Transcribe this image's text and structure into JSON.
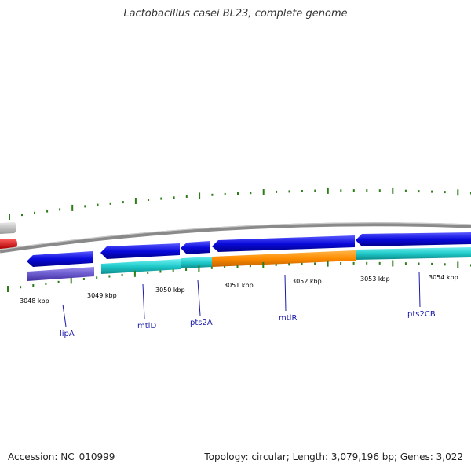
{
  "title": "Lactobacillus casei BL23, complete genome",
  "footer": {
    "accession": "Accession: NC_010999",
    "summary": "Topology: circular; Length: 3,079,196 bp; Genes: 3,022"
  },
  "scale_labels": [
    "3048 kbp",
    "3049 kbp",
    "3050 kbp",
    "3051 kbp",
    "3052 kbp",
    "3053 kbp",
    "3054 kbp"
  ],
  "gene_labels": [
    "lipA",
    "mtlD",
    "pts2A",
    "mtlR",
    "pts2CB"
  ],
  "colors": {
    "backbone": "#8a8a8a",
    "cds_strand": "#0a0adc",
    "unknown_function": "#6a5acd",
    "transport": "#1fc9c9",
    "regulation": "#ff8c00",
    "ticks": "#2e7d1a",
    "partial_gray": "#c4c4c4",
    "partial_red": "#ee0000"
  }
}
